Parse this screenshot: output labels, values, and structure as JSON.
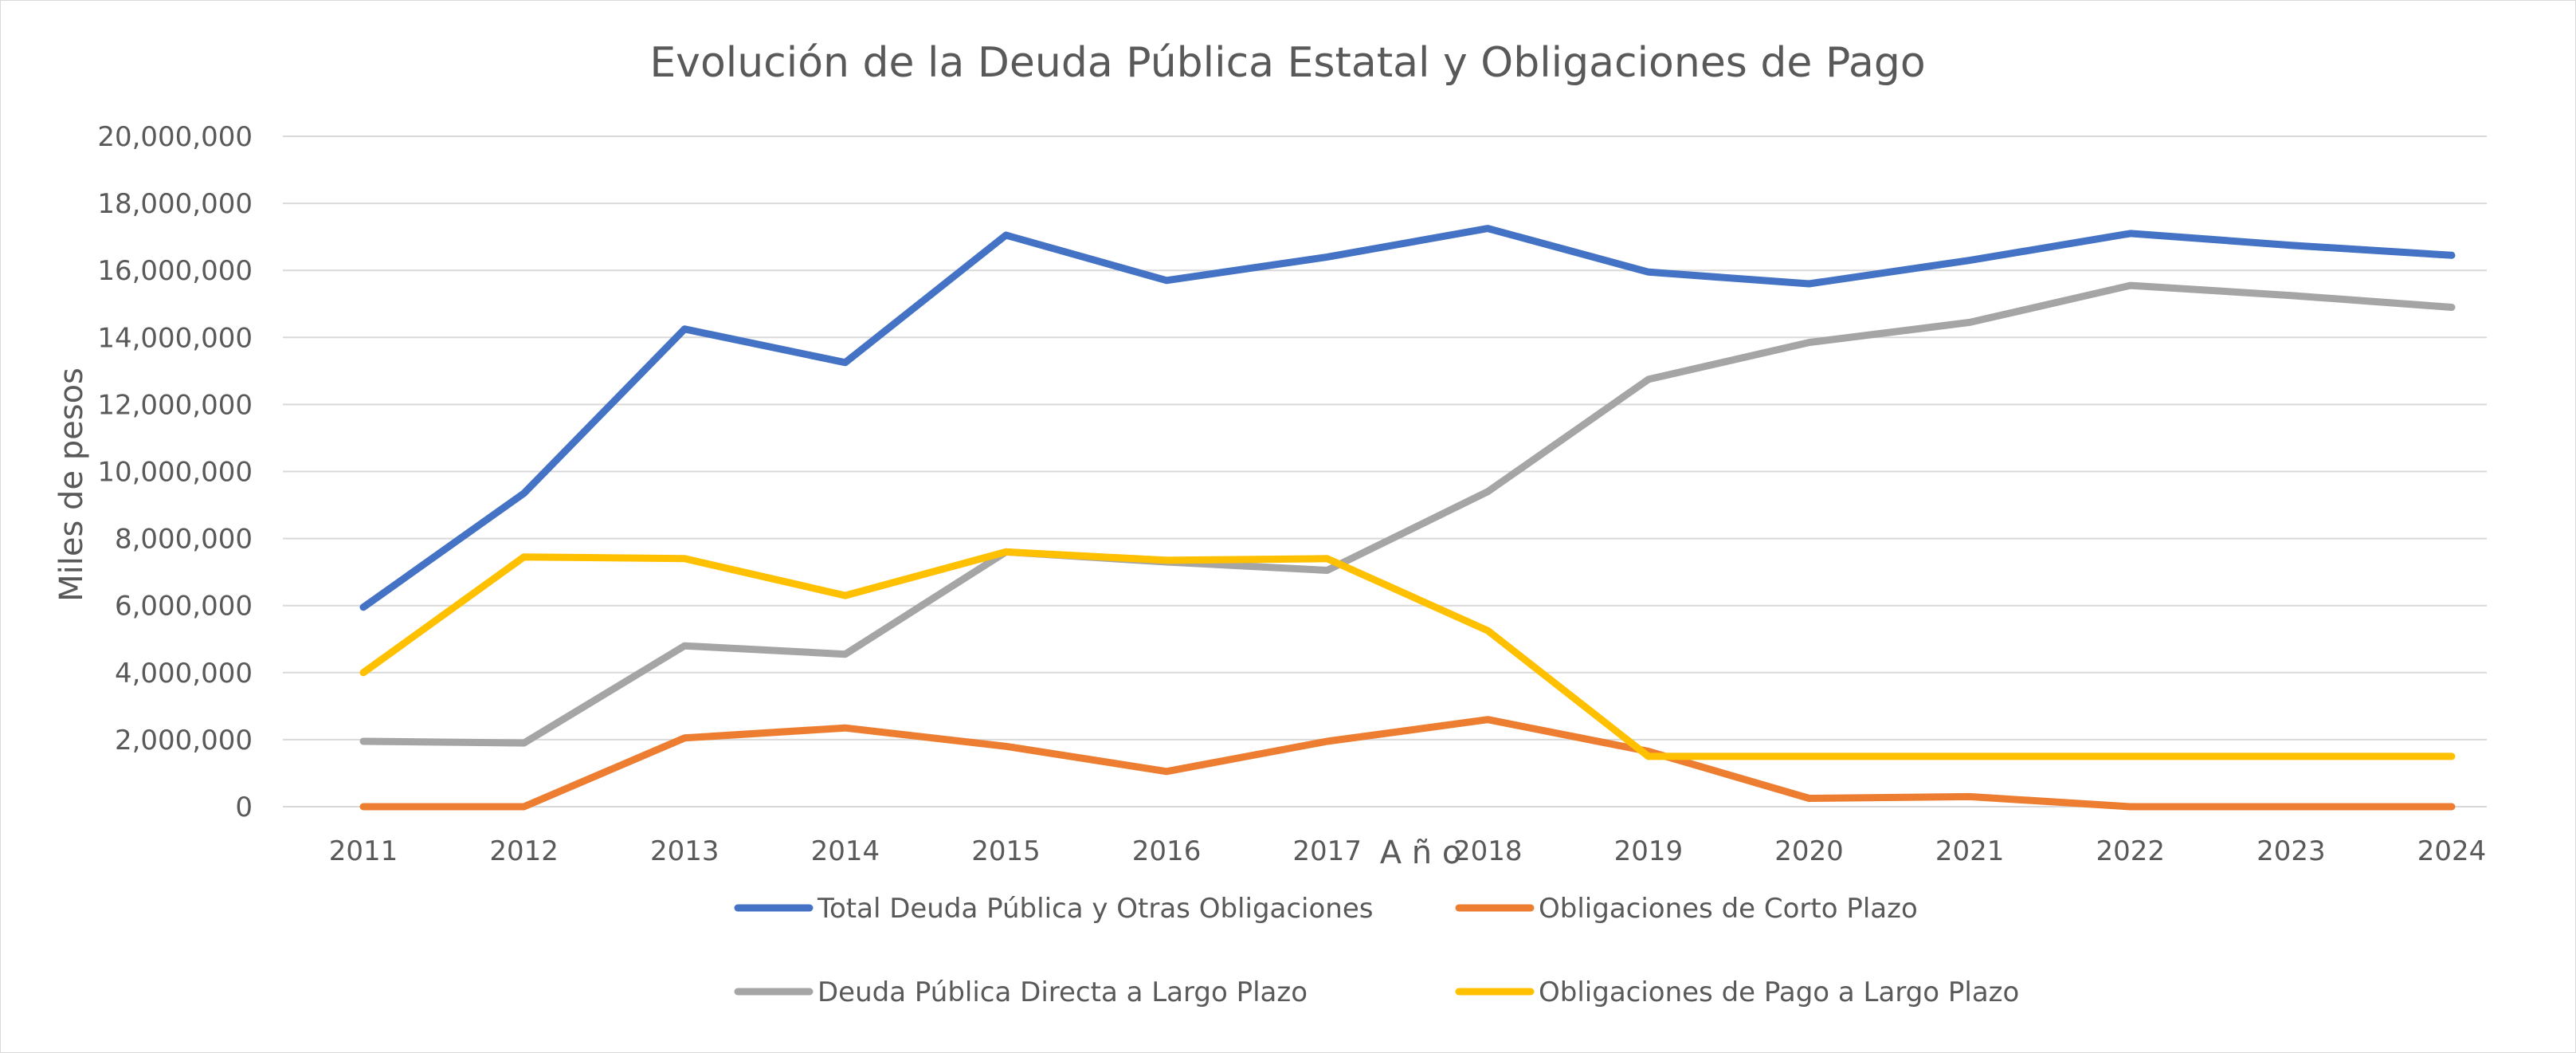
{
  "chart_data": {
    "type": "line",
    "title": "Evolución de la Deuda Pública  Estatal y Obligaciones de Pago",
    "xlabel": "A ñ o",
    "ylabel": "Miles de pesos",
    "categories": [
      "2011",
      "2012",
      "2013",
      "2014",
      "2015",
      "2016",
      "2017",
      "2018",
      "2019",
      "2020",
      "2021",
      "2022",
      "2023",
      "2024"
    ],
    "ylim": [
      0,
      20000000
    ],
    "yticks": [
      0,
      2000000,
      4000000,
      6000000,
      8000000,
      10000000,
      12000000,
      14000000,
      16000000,
      18000000,
      20000000
    ],
    "ytick_labels": [
      "0",
      "2,000,000",
      "4,000,000",
      "6,000,000",
      "8,000,000",
      "10,000,000",
      "12,000,000",
      "14,000,000",
      "16,000,000",
      "18,000,000",
      "20,000,000"
    ],
    "grid": true,
    "legend_position": "bottom",
    "series": [
      {
        "name": "Total Deuda Pública y Otras Obligaciones",
        "color": "#4472C4",
        "values": [
          5950000,
          9350000,
          14250000,
          13250000,
          17050000,
          15700000,
          16400000,
          17250000,
          15950000,
          15600000,
          16300000,
          17100000,
          16750000,
          16450000
        ]
      },
      {
        "name": "Obligaciones de Corto Plazo",
        "color": "#ED7D31",
        "values": [
          0,
          0,
          2050000,
          2350000,
          1800000,
          1050000,
          1950000,
          2600000,
          1650000,
          250000,
          300000,
          0,
          0,
          0
        ]
      },
      {
        "name": "Deuda Pública Directa a Largo Plazo",
        "color": "#A5A5A5",
        "values": [
          1950000,
          1900000,
          4800000,
          4550000,
          7600000,
          7300000,
          7050000,
          9400000,
          12750000,
          13850000,
          14450000,
          15550000,
          15250000,
          14900000
        ]
      },
      {
        "name": "Obligaciones de Pago a Largo Plazo",
        "color": "#FFC000",
        "values": [
          4000000,
          7450000,
          7400000,
          6300000,
          7600000,
          7350000,
          7400000,
          5250000,
          1500000,
          1500000,
          1500000,
          1500000,
          1500000,
          1500000
        ]
      }
    ]
  }
}
